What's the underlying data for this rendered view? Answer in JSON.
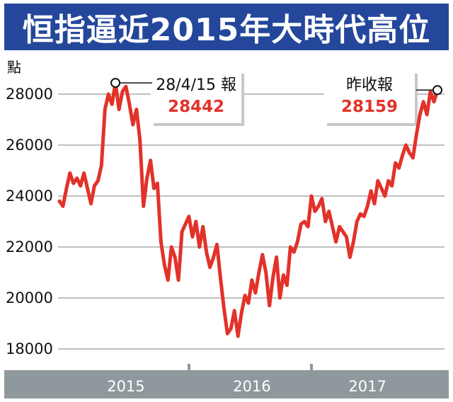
{
  "title": "恒指逼近2015年大時代高位",
  "chart_data": {
    "type": "line",
    "unit_label": "點",
    "ylim": [
      17800,
      28600
    ],
    "yticks": [
      18000,
      20000,
      22000,
      24000,
      26000,
      28000
    ],
    "xlim": [
      0,
      108
    ],
    "xtick_labels": [
      {
        "label": "2015",
        "x": 19
      },
      {
        "label": "2016",
        "x": 55
      },
      {
        "label": "2017",
        "x": 88
      }
    ],
    "x_dividers": [
      37,
      72
    ],
    "grid": true,
    "line_color": "#e2322a",
    "series": [
      {
        "values": [
          [
            0,
            23800
          ],
          [
            1,
            23600
          ],
          [
            2,
            24300
          ],
          [
            3,
            24900
          ],
          [
            4,
            24500
          ],
          [
            5,
            24700
          ],
          [
            6,
            24400
          ],
          [
            7,
            24900
          ],
          [
            8,
            24300
          ],
          [
            9,
            23700
          ],
          [
            10,
            24400
          ],
          [
            11,
            24600
          ],
          [
            12,
            25200
          ],
          [
            13,
            27400
          ],
          [
            14,
            28000
          ],
          [
            15,
            27600
          ],
          [
            16,
            28442
          ],
          [
            17,
            27400
          ],
          [
            18,
            28100
          ],
          [
            19,
            28300
          ],
          [
            20,
            27600
          ],
          [
            21,
            26800
          ],
          [
            22,
            27400
          ],
          [
            23,
            26200
          ],
          [
            24,
            23600
          ],
          [
            25,
            24700
          ],
          [
            26,
            25400
          ],
          [
            27,
            24300
          ],
          [
            28,
            24500
          ],
          [
            29,
            22200
          ],
          [
            30,
            21300
          ],
          [
            31,
            20700
          ],
          [
            32,
            22000
          ],
          [
            33,
            21600
          ],
          [
            34,
            20700
          ],
          [
            35,
            22600
          ],
          [
            36,
            22900
          ],
          [
            37,
            23200
          ],
          [
            38,
            22400
          ],
          [
            39,
            23000
          ],
          [
            40,
            22000
          ],
          [
            41,
            22800
          ],
          [
            42,
            21800
          ],
          [
            43,
            21200
          ],
          [
            44,
            21600
          ],
          [
            45,
            22100
          ],
          [
            46,
            20800
          ],
          [
            47,
            19600
          ],
          [
            48,
            18600
          ],
          [
            49,
            18800
          ],
          [
            50,
            19500
          ],
          [
            51,
            18500
          ],
          [
            52,
            19400
          ],
          [
            53,
            20100
          ],
          [
            54,
            19800
          ],
          [
            55,
            20700
          ],
          [
            56,
            20200
          ],
          [
            57,
            21000
          ],
          [
            58,
            21700
          ],
          [
            59,
            21000
          ],
          [
            60,
            19700
          ],
          [
            61,
            20800
          ],
          [
            62,
            21600
          ],
          [
            63,
            20000
          ],
          [
            64,
            20900
          ],
          [
            65,
            20500
          ],
          [
            66,
            22000
          ],
          [
            67,
            21800
          ],
          [
            68,
            22200
          ],
          [
            69,
            22900
          ],
          [
            70,
            23000
          ],
          [
            71,
            22800
          ],
          [
            72,
            24000
          ],
          [
            73,
            23400
          ],
          [
            74,
            23600
          ],
          [
            75,
            23900
          ],
          [
            76,
            23000
          ],
          [
            77,
            23400
          ],
          [
            78,
            22800
          ],
          [
            79,
            22200
          ],
          [
            80,
            22800
          ],
          [
            81,
            22600
          ],
          [
            82,
            22400
          ],
          [
            83,
            21600
          ],
          [
            84,
            22200
          ],
          [
            85,
            23000
          ],
          [
            86,
            23300
          ],
          [
            87,
            23200
          ],
          [
            88,
            23600
          ],
          [
            89,
            24200
          ],
          [
            90,
            23700
          ],
          [
            91,
            24600
          ],
          [
            92,
            24300
          ],
          [
            93,
            24000
          ],
          [
            94,
            24600
          ],
          [
            95,
            24400
          ],
          [
            96,
            25300
          ],
          [
            97,
            25100
          ],
          [
            98,
            25600
          ],
          [
            99,
            26000
          ],
          [
            100,
            25700
          ],
          [
            101,
            25500
          ],
          [
            102,
            26400
          ],
          [
            103,
            27200
          ],
          [
            104,
            27700
          ],
          [
            105,
            27200
          ],
          [
            106,
            28100
          ],
          [
            107,
            27700
          ],
          [
            108,
            28159
          ]
        ]
      }
    ],
    "annotations": [
      {
        "label": "28/4/15 報",
        "value": "28442",
        "x": 16,
        "y": 28442,
        "side": "right"
      },
      {
        "label": "昨收報",
        "value": "28159",
        "x": 108,
        "y": 28159,
        "side": "left"
      }
    ]
  }
}
